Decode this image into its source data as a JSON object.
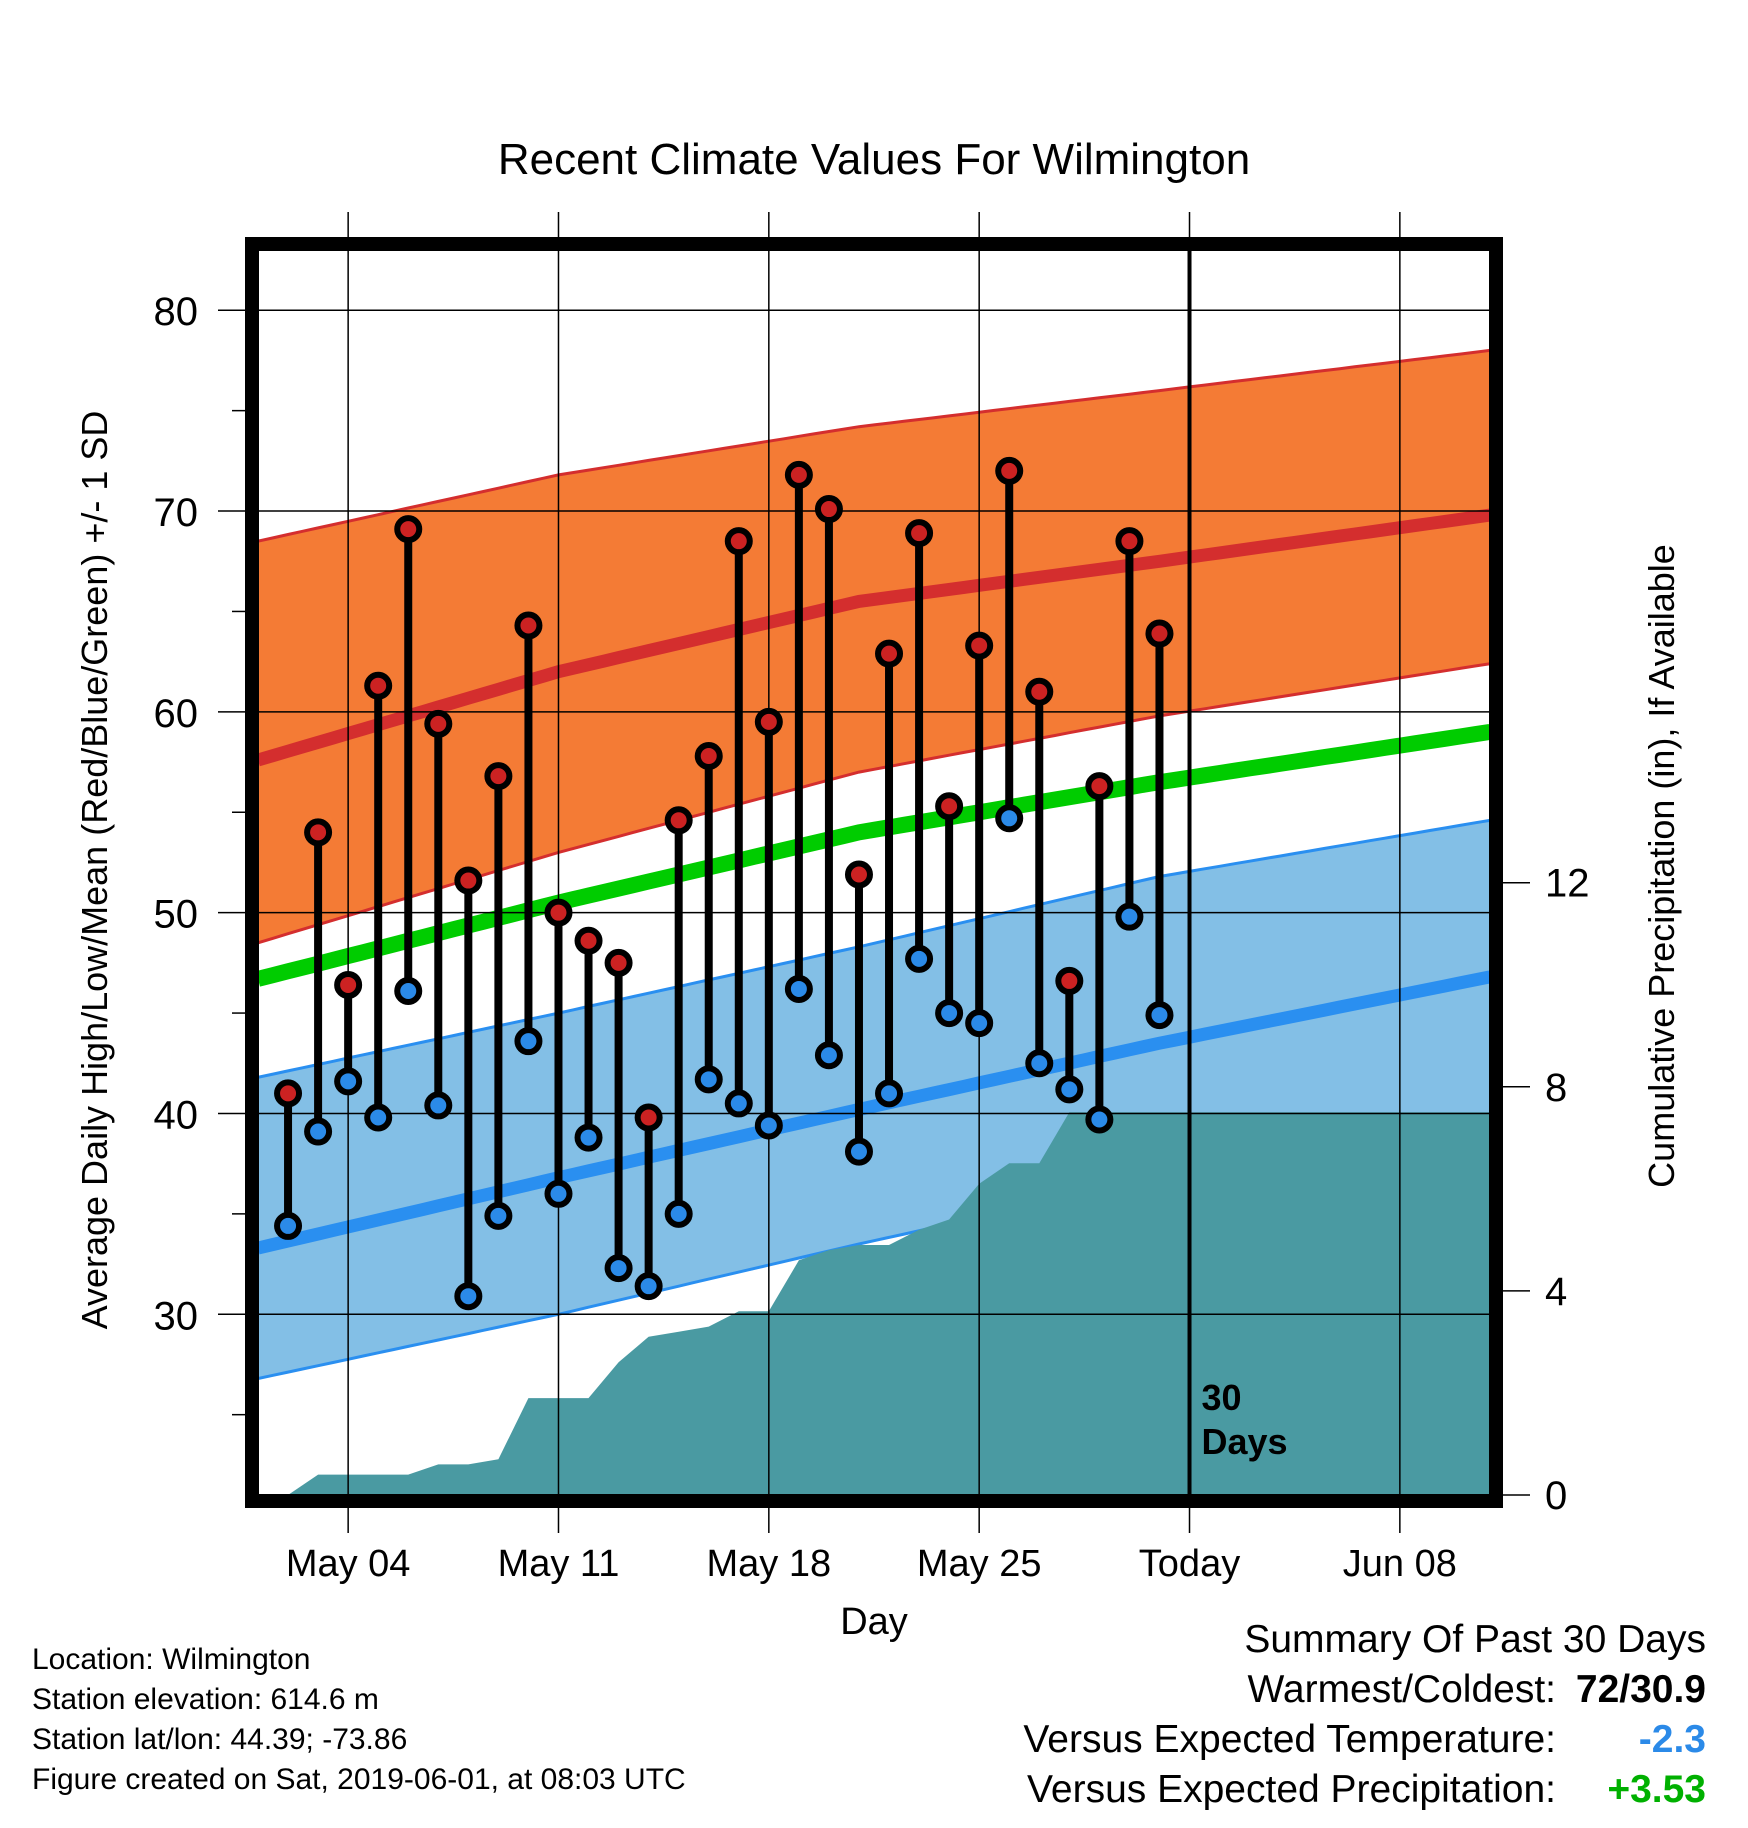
{
  "chart_data": {
    "type": "line",
    "title": "Recent Climate Values For Wilmington",
    "xlabel": "Day",
    "ylabel": "Average Daily High/Low/Mean (Red/Blue/Green) +/- 1 SD",
    "y2label": "Cumulative Precipitation (in), If Available",
    "x_tick_labels": [
      "May 04",
      "May 11",
      "May 18",
      "May 25",
      "Today",
      "Jun 08"
    ],
    "x_tick_days": [
      3,
      10,
      17,
      24,
      31,
      38
    ],
    "x_range_days": [
      0,
      41
    ],
    "ylim": [
      21,
      83
    ],
    "y_ticks": [
      30,
      40,
      50,
      60,
      70,
      80
    ],
    "y2lim": [
      0,
      24.4
    ],
    "y2_ticks": [
      0,
      4,
      8,
      12
    ],
    "today_day": 31,
    "today_annotation": "30\nDays",
    "normals": {
      "days": [
        0,
        10,
        20,
        30,
        41
      ],
      "high_mean": [
        57.6,
        62.0,
        65.5,
        67.5,
        69.8
      ],
      "high_plus_sd": [
        68.5,
        71.8,
        74.2,
        76.0,
        78.0
      ],
      "high_minus_sd": [
        48.5,
        53.0,
        57.0,
        59.8,
        62.4
      ],
      "avg_mean": [
        46.7,
        50.5,
        54.0,
        56.5,
        59.0
      ],
      "low_mean": [
        33.3,
        36.8,
        40.2,
        43.5,
        46.8
      ],
      "low_plus_sd": [
        41.8,
        45.0,
        48.3,
        51.8,
        54.6
      ],
      "low_minus_sd": [
        26.8,
        30.0,
        33.5,
        36.8,
        40.0
      ]
    },
    "series": [
      {
        "name": "High",
        "days": [
          1,
          2,
          3,
          4,
          5,
          6,
          7,
          8,
          9,
          10,
          11,
          12,
          13,
          14,
          15,
          16,
          17,
          18,
          19,
          20,
          21,
          22,
          23,
          24,
          25,
          26,
          27,
          28,
          29,
          30,
          31
        ],
        "values": [
          41.0,
          54.0,
          46.4,
          61.3,
          69.1,
          59.4,
          51.6,
          56.8,
          64.3,
          50.0,
          48.6,
          47.5,
          39.8,
          54.6,
          57.8,
          68.5,
          59.5,
          71.8,
          70.1,
          51.9,
          62.9,
          68.9,
          55.3,
          63.3,
          72.0,
          61.0,
          46.6,
          56.3,
          68.5,
          63.9,
          null
        ]
      },
      {
        "name": "Low",
        "days": [
          1,
          2,
          3,
          4,
          5,
          6,
          7,
          8,
          9,
          10,
          11,
          12,
          13,
          14,
          15,
          16,
          17,
          18,
          19,
          20,
          21,
          22,
          23,
          24,
          25,
          26,
          27,
          28,
          29,
          30,
          31
        ],
        "values": [
          34.4,
          39.1,
          41.6,
          39.8,
          46.1,
          40.4,
          30.9,
          34.9,
          43.6,
          36.0,
          38.8,
          32.3,
          31.4,
          35.0,
          41.7,
          40.5,
          39.4,
          46.2,
          42.9,
          38.1,
          41.0,
          47.7,
          45.0,
          44.5,
          54.7,
          42.5,
          41.2,
          39.7,
          49.8,
          44.9,
          null
        ]
      },
      {
        "name": "Cumulative Precipitation",
        "days": [
          1,
          2,
          3,
          4,
          5,
          6,
          7,
          8,
          9,
          10,
          11,
          12,
          13,
          14,
          15,
          16,
          17,
          18,
          19,
          20,
          21,
          22,
          23,
          24,
          25,
          26,
          27,
          28,
          29,
          30,
          31,
          32,
          33,
          34,
          35,
          36,
          37,
          38,
          39,
          40,
          41
        ],
        "values": [
          0.0,
          0.4,
          0.4,
          0.4,
          0.4,
          0.6,
          0.6,
          0.7,
          1.9,
          1.9,
          1.9,
          2.6,
          3.1,
          3.2,
          3.3,
          3.6,
          3.6,
          4.6,
          4.8,
          4.9,
          4.9,
          5.2,
          5.4,
          6.1,
          6.5,
          6.5,
          7.5,
          7.5,
          7.5,
          7.5,
          7.5,
          7.5,
          7.5,
          7.5,
          7.5,
          7.5,
          7.5,
          7.5,
          7.5,
          7.5,
          7.5
        ]
      }
    ]
  },
  "colors": {
    "high_band": "#f47b35",
    "high_line": "#d42e2e",
    "avg_line": "#00cc00",
    "low_band": "#83bfe6",
    "low_line": "#2a8ff0",
    "precip": "#4a9aa2",
    "high_dot": "#cc2222",
    "low_dot": "#2b8ae8",
    "summary_temp": "#2b8ae8",
    "summary_precip": "#00b000"
  },
  "footer": {
    "location": "Location: Wilmington",
    "elevation": "Station elevation: 614.6 m",
    "latlon": "Station lat/lon: 44.39; -73.86",
    "created": "Figure created on Sat, 2019-06-01, at 08:03 UTC"
  },
  "summary": {
    "title": "Summary Of Past 30 Days",
    "warm_cold_label": "Warmest/Coldest:",
    "warm_cold_value": "72/30.9",
    "temp_label": "Versus Expected Temperature:",
    "temp_value": "-2.3",
    "precip_label": "Versus Expected Precipitation:",
    "precip_value": "+3.53"
  }
}
